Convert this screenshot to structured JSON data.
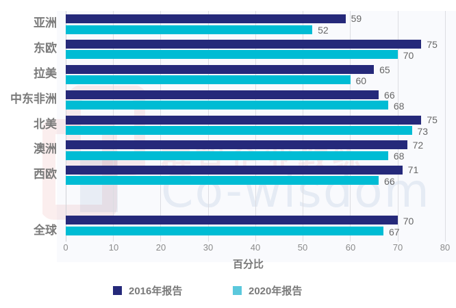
{
  "chart_data": {
    "type": "bar",
    "orientation": "horizontal",
    "title": "",
    "xlabel": "百分比",
    "ylabel": "",
    "xlim": [
      0,
      80
    ],
    "xticks": [
      0,
      10,
      20,
      30,
      40,
      50,
      60,
      70,
      80
    ],
    "grid": true,
    "legend_position": "bottom",
    "categories": [
      "亚洲",
      "东欧",
      "拉美",
      "中东非洲",
      "北美",
      "澳洲",
      "西欧",
      "全球"
    ],
    "series": [
      {
        "name": "2016年报告",
        "color": "#25297a",
        "values": [
          59,
          75,
          65,
          66,
          75,
          72,
          71,
          70
        ]
      },
      {
        "name": "2020年报告",
        "color": "#00bcd4",
        "values": [
          52,
          70,
          60,
          68,
          73,
          68,
          66,
          67
        ]
      }
    ]
  },
  "axis": {
    "ticks": [
      "0",
      "10",
      "20",
      "30",
      "40",
      "50",
      "60",
      "70",
      "80"
    ],
    "xlabel": "百分比"
  },
  "categories": [
    "亚洲",
    "东欧",
    "拉美",
    "中东非洲",
    "北美",
    "澳洲",
    "西欧",
    "全球"
  ],
  "values_2016": [
    "59",
    "75",
    "65",
    "66",
    "75",
    "72",
    "71",
    "70"
  ],
  "values_2020": [
    "52",
    "70",
    "60",
    "68",
    "73",
    "68",
    "66",
    "67"
  ],
  "legend": {
    "items": [
      {
        "label": "2016年报告",
        "color": "#25297a"
      },
      {
        "label": "2020年报告",
        "color": "#5bc8dc"
      }
    ]
  },
  "watermark": {
    "cn": "群智企业教练",
    "en": "Co-wisdom"
  }
}
